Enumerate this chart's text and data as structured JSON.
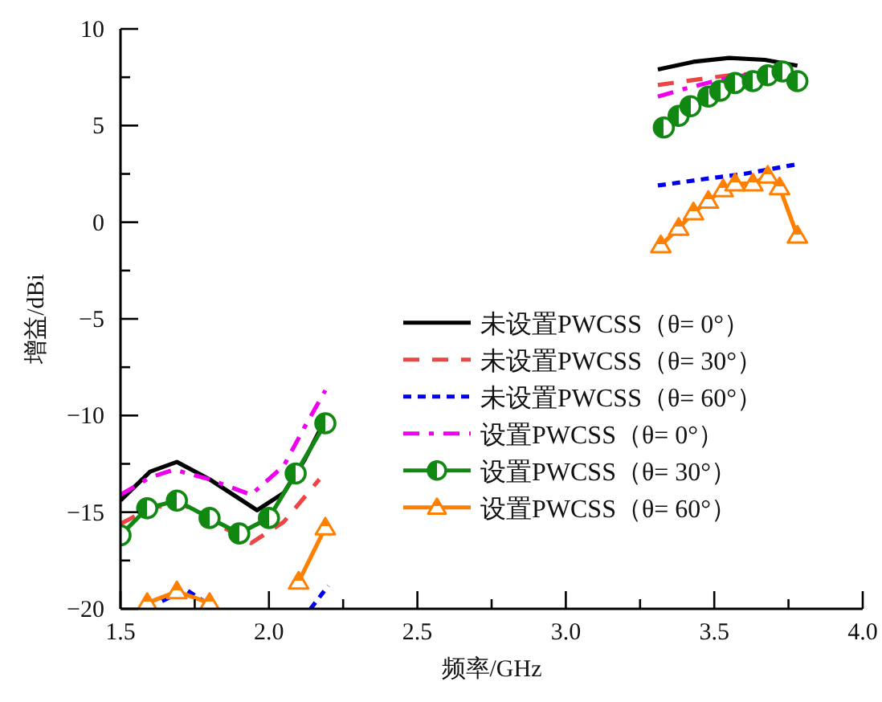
{
  "chart_data": {
    "type": "line",
    "xlabel": "频率/GHz",
    "ylabel": "增益/dBi",
    "xlim": [
      1.5,
      4.0
    ],
    "ylim": [
      -20,
      10
    ],
    "xticks": [
      {
        "value": 1.5,
        "label": "1.5"
      },
      {
        "value": 1.75,
        "label": null
      },
      {
        "value": 2.0,
        "label": "2.0"
      },
      {
        "value": 2.25,
        "label": null
      },
      {
        "value": 2.5,
        "label": "2.5"
      },
      {
        "value": 2.75,
        "label": null
      },
      {
        "value": 3.0,
        "label": "3.0"
      },
      {
        "value": 3.25,
        "label": null
      },
      {
        "value": 3.5,
        "label": "3.5"
      },
      {
        "value": 3.75,
        "label": null
      },
      {
        "value": 4.0,
        "label": "4.0"
      }
    ],
    "yticks": [
      {
        "value": -20,
        "label": "−20"
      },
      {
        "value": -17.5,
        "label": null
      },
      {
        "value": -15,
        "label": "−15"
      },
      {
        "value": -12.5,
        "label": null
      },
      {
        "value": -10,
        "label": "−10"
      },
      {
        "value": -7.5,
        "label": null
      },
      {
        "value": -5,
        "label": "−5"
      },
      {
        "value": -2.5,
        "label": null
      },
      0,
      {
        "value": 2.5,
        "label": null
      },
      5,
      {
        "value": 7.5,
        "label": null
      },
      10
    ],
    "grid": false,
    "legend": "right",
    "series": [
      {
        "name": "未设置PWCSS（θ= 0°）",
        "color": "#000000",
        "line_style": "solid",
        "marker": "none",
        "x": [
          1.5,
          1.6,
          1.69,
          1.8,
          1.96,
          2.05,
          2.12,
          2.18,
          null,
          3.31,
          3.43,
          3.55,
          3.67,
          3.78
        ],
        "values": [
          -14.4,
          -12.9,
          -12.4,
          -13.3,
          -14.9,
          -14.0,
          -12.3,
          -10.5,
          null,
          7.9,
          8.3,
          8.5,
          8.4,
          8.1
        ]
      },
      {
        "name": "未设置PWCSS（θ= 30°）",
        "color": "#ee4444",
        "line_style": "dashed",
        "marker": "none",
        "x": [
          1.5,
          1.6,
          1.7,
          1.94,
          2.05,
          2.17,
          null,
          3.31,
          3.45,
          3.55,
          3.65,
          3.76
        ],
        "values": [
          -15.6,
          -14.8,
          -14.5,
          -16.6,
          -15.5,
          -13.3,
          null,
          7.1,
          7.4,
          7.6,
          7.7,
          7.8
        ]
      },
      {
        "name": "未设置PWCSS（θ= 60°）",
        "color": "#0000ee",
        "line_style": "dotted",
        "marker": "none",
        "x": [
          1.64,
          1.72,
          1.78,
          1.82,
          null,
          2.14,
          2.2,
          null,
          3.31,
          3.45,
          3.6,
          3.78
        ],
        "values": [
          -19.6,
          -19.0,
          -19.6,
          -20,
          null,
          -20,
          -18.8,
          null,
          1.9,
          2.2,
          2.5,
          3.0
        ]
      },
      {
        "name": "设置PWCSS（θ= 0°）",
        "color": "#ee00ee",
        "line_style": "dashdot",
        "marker": "none",
        "x": [
          1.5,
          1.6,
          1.68,
          1.8,
          1.94,
          2.05,
          2.12,
          2.19,
          null,
          3.31,
          3.4,
          3.5,
          3.6,
          3.7
        ],
        "values": [
          -14.1,
          -13.2,
          -12.8,
          -13.3,
          -14.1,
          -12.6,
          -10.6,
          -8.7,
          null,
          6.5,
          6.9,
          7.3,
          7.6,
          7.9
        ]
      },
      {
        "name": "设置PWCSS（θ= 30°）",
        "color": "#118811",
        "line_style": "solid",
        "marker": "circle",
        "x": [
          1.5,
          1.59,
          1.69,
          1.8,
          1.9,
          2.0,
          2.09,
          2.19,
          null,
          3.33,
          3.38,
          3.42,
          3.48,
          3.52,
          3.57,
          3.63,
          3.68,
          3.73,
          3.78
        ],
        "values": [
          -16.2,
          -14.8,
          -14.4,
          -15.3,
          -16.1,
          -15.3,
          -13.0,
          -10.4,
          null,
          4.9,
          5.5,
          6.0,
          6.5,
          6.8,
          7.2,
          7.3,
          7.6,
          7.8,
          7.3
        ]
      },
      {
        "name": "设置PWCSS（θ= 60°）",
        "color": "#ff8000",
        "line_style": "solid",
        "marker": "triangle",
        "x": [
          1.59,
          1.69,
          1.8,
          null,
          2.1,
          2.19,
          null,
          3.32,
          3.38,
          3.43,
          3.48,
          3.53,
          3.57,
          3.63,
          3.68,
          3.72,
          3.78
        ],
        "values": [
          -19.7,
          -19.1,
          -19.7,
          null,
          -18.6,
          -15.8,
          null,
          -1.2,
          -0.3,
          0.5,
          1.1,
          1.7,
          2.0,
          2.0,
          2.4,
          1.8,
          -0.7
        ]
      }
    ]
  }
}
